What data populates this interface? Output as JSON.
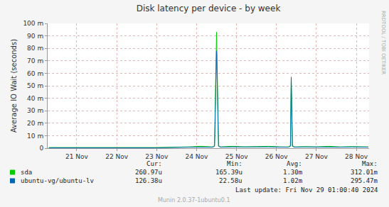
{
  "chart_data": {
    "type": "line",
    "title": "Disk latency per device - by week",
    "y_label": "Average IO Wait (seconds)",
    "x": [
      20.8,
      21.5,
      22.5,
      23.5,
      24.3,
      24.6,
      24.9,
      24.95,
      25.0,
      25.05,
      25.1,
      25.4,
      25.7,
      26.0,
      26.3,
      26.6,
      26.8,
      26.85,
      26.87,
      26.9,
      26.95,
      27.2,
      27.5,
      27.8,
      28.1,
      28.4,
      28.8
    ],
    "series": [
      {
        "name": "sda",
        "color": "#00cc00",
        "values": [
          0.0005,
          0.0005,
          0.0005,
          0.0005,
          0.001,
          0.0015,
          0.001,
          0.002,
          0.093,
          0.002,
          0.001,
          0.0015,
          0.001,
          0.0012,
          0.0015,
          0.001,
          0.001,
          0.002,
          0.055,
          0.002,
          0.001,
          0.0012,
          0.001,
          0.0015,
          0.001,
          0.0012,
          0.001
        ],
        "stats": [
          "260.97u",
          "165.39u",
          "1.30m",
          "312.01m"
        ]
      },
      {
        "name": "ubuntu-vg/ubuntu-lv",
        "color": "#0066b3",
        "values": [
          0.0003,
          0.0003,
          0.0003,
          0.0003,
          0.0008,
          0.001,
          0.0008,
          0.0015,
          0.078,
          0.0015,
          0.0008,
          0.001,
          0.0008,
          0.001,
          0.001,
          0.0008,
          0.0008,
          0.0015,
          0.057,
          0.0015,
          0.0008,
          0.001,
          0.0008,
          0.001,
          0.0008,
          0.001,
          0.0008
        ],
        "stats": [
          "126.38u",
          "22.58u",
          "1.02m",
          "295.47m"
        ]
      }
    ],
    "stats_columns": [
      "Cur:",
      "Min:",
      "Avg:",
      "Max:"
    ],
    "xlim": [
      20.77,
      28.82
    ],
    "xticks": [
      {
        "value": 21.5,
        "label": "21 Nov"
      },
      {
        "value": 22.5,
        "label": "22 Nov"
      },
      {
        "value": 23.5,
        "label": "23 Nov"
      },
      {
        "value": 24.5,
        "label": "24 Nov"
      },
      {
        "value": 25.5,
        "label": "25 Nov"
      },
      {
        "value": 26.5,
        "label": "26 Nov"
      },
      {
        "value": 27.5,
        "label": "27 Nov"
      },
      {
        "value": 28.5,
        "label": "28 Nov"
      }
    ],
    "ylim": [
      0,
      0.1
    ],
    "yticks": [
      0,
      {
        "value": 0.01,
        "label": "10 m"
      },
      {
        "value": 0.02,
        "label": "20 m"
      },
      {
        "value": 0.03,
        "label": "30 m"
      },
      {
        "value": 0.04,
        "label": "40 m"
      },
      {
        "value": 0.05,
        "label": "50 m"
      },
      {
        "value": 0.06,
        "label": "60 m"
      },
      {
        "value": 0.07,
        "label": "70 m"
      },
      {
        "value": 0.08,
        "label": "80 m"
      },
      {
        "value": 0.09,
        "label": "90 m"
      },
      {
        "value": 0.1,
        "label": "100 m"
      }
    ],
    "grid": true,
    "annotations": {
      "last_update": "Last update: Fri Nov 29 01:00:40 2024",
      "version": "Munin 2.0.37-1ubuntu0.1",
      "watermark": "RRDTOOL / TOBI OETIKER"
    }
  }
}
